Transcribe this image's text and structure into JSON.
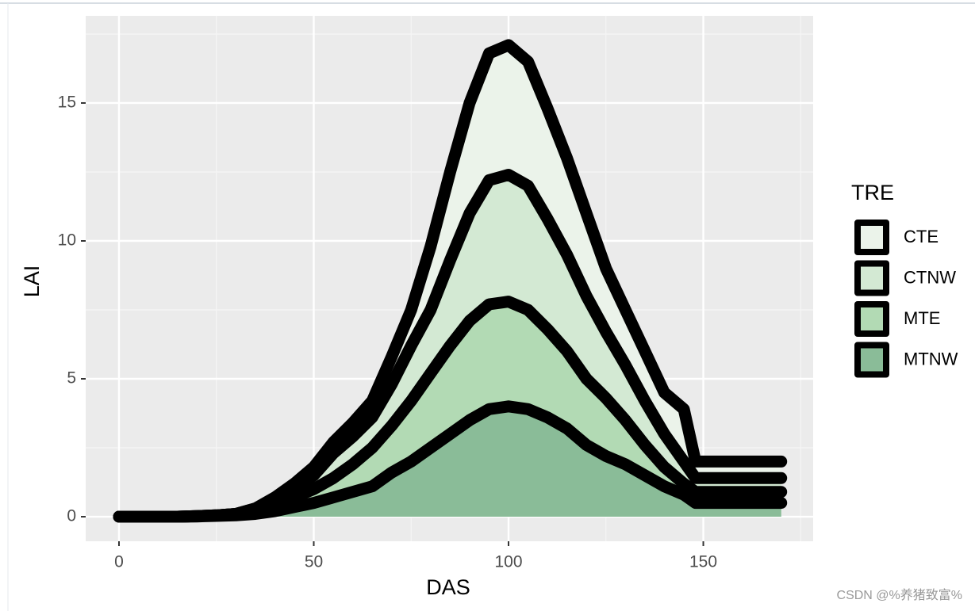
{
  "chart_data": {
    "type": "area",
    "x_label": "DAS",
    "y_label": "LAI",
    "legend_title": "TRE",
    "legend": "right",
    "x": [
      0,
      5,
      10,
      15,
      20,
      25,
      30,
      35,
      40,
      45,
      50,
      55,
      60,
      65,
      70,
      75,
      80,
      85,
      90,
      95,
      100,
      105,
      110,
      115,
      120,
      125,
      130,
      135,
      140,
      145,
      148,
      150,
      155,
      160,
      165,
      170
    ],
    "series": [
      {
        "name": "CTE",
        "color": "#ebf3ea",
        "values": [
          0,
          0,
          0,
          0,
          0.02,
          0.05,
          0.1,
          0.3,
          0.7,
          1.2,
          1.8,
          2.7,
          3.4,
          4.2,
          5.8,
          7.5,
          9.8,
          12.5,
          15,
          16.8,
          17.1,
          16.5,
          14.8,
          13,
          11,
          9,
          7.5,
          6,
          4.5,
          3.9,
          2.0,
          2.0,
          2.0,
          2.0,
          2.0,
          2.0
        ]
      },
      {
        "name": "CTNW",
        "color": "#d3e9d3",
        "values": [
          0,
          0,
          0,
          0,
          0.02,
          0.05,
          0.1,
          0.3,
          0.6,
          1.0,
          1.5,
          2.3,
          2.9,
          3.6,
          4.8,
          6.2,
          7.5,
          9.3,
          11,
          12.2,
          12.4,
          12.0,
          10.8,
          9.5,
          8,
          6.7,
          5.5,
          4.2,
          3.0,
          2.0,
          1.4,
          1.4,
          1.4,
          1.4,
          1.4,
          1.4
        ]
      },
      {
        "name": "MTE",
        "color": "#b2dab4",
        "values": [
          0,
          0,
          0,
          0,
          0.02,
          0.05,
          0.1,
          0.2,
          0.4,
          0.7,
          1.0,
          1.4,
          1.9,
          2.5,
          3.3,
          4.2,
          5.2,
          6.2,
          7.1,
          7.7,
          7.8,
          7.5,
          6.8,
          6,
          5,
          4.3,
          3.5,
          2.6,
          1.8,
          1.2,
          0.9,
          0.9,
          0.9,
          0.9,
          0.9,
          0.9
        ]
      },
      {
        "name": "MTNW",
        "color": "#8abc98",
        "values": [
          0,
          0,
          0,
          0,
          0.01,
          0.03,
          0.05,
          0.1,
          0.2,
          0.35,
          0.5,
          0.7,
          0.9,
          1.1,
          1.6,
          2.0,
          2.5,
          3.0,
          3.5,
          3.9,
          4.0,
          3.9,
          3.6,
          3.2,
          2.6,
          2.2,
          1.9,
          1.5,
          1.1,
          0.8,
          0.5,
          0.5,
          0.5,
          0.5,
          0.5,
          0.5
        ]
      }
    ],
    "outline_color": "#000000",
    "xlim": [
      -8.55,
      178.2
    ],
    "ylim": [
      -0.89,
      18.16
    ],
    "xticks": [
      0,
      50,
      100,
      150
    ],
    "yticks": [
      0,
      5,
      10,
      15
    ],
    "xminor": [
      25,
      75,
      125,
      175
    ],
    "yminor": [
      2.5,
      7.5,
      12.5,
      17.5
    ],
    "grid": true
  },
  "watermark": "CSDN @%养猪致富%"
}
